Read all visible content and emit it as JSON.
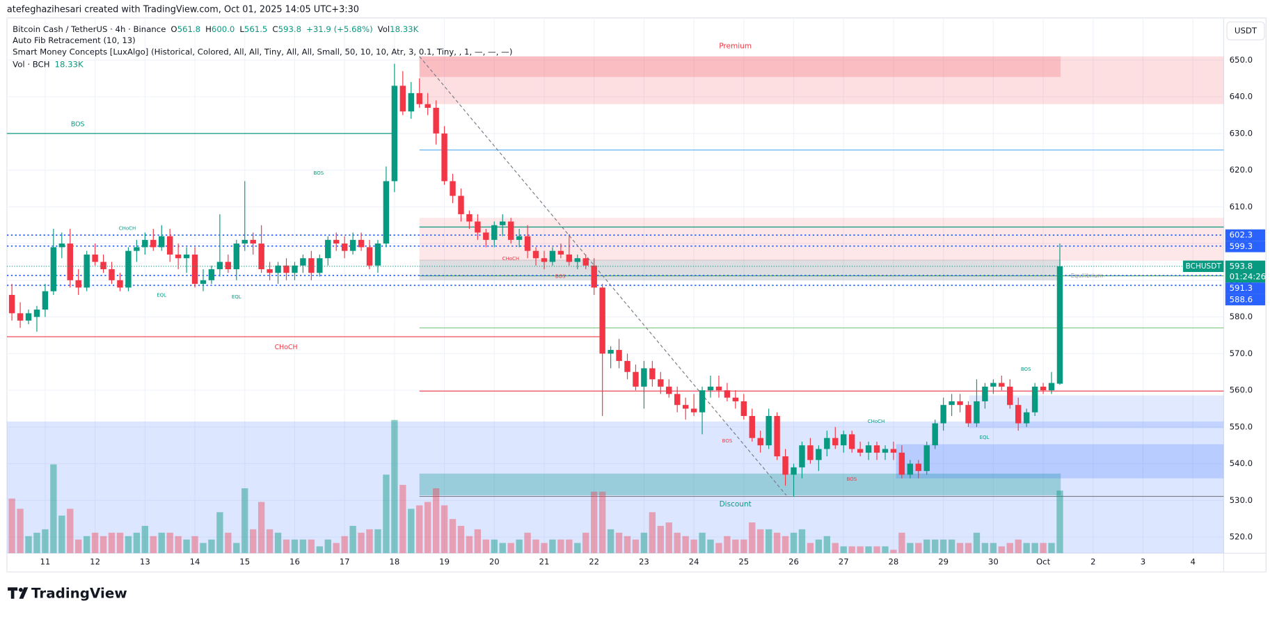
{
  "header": {
    "credit": "atefeghazihesari created with TradingView.com, Oct 01, 2025 14:05 UTC+3:30",
    "symbol": "Bitcoin Cash / TetherUS · 4h · Binance",
    "ohlc": [
      {
        "k": "O",
        "v": "561.8"
      },
      {
        "k": "H",
        "v": "600.0"
      },
      {
        "k": "L",
        "v": "561.5"
      },
      {
        "k": "C",
        "v": "593.8"
      }
    ],
    "change": "+31.9 (+5.68%)",
    "vol_key": "Vol",
    "vol_value": "18.33K",
    "indicators": [
      "Auto Fib Retracement (10, 13)",
      "Smart Money Concepts [LuxAlgo] (Historical, Colored, All, All, Tiny, All, All, Small, 50, 10, 10, Atr, 3, 0.1, Tiny, , 1, —, —, —)"
    ],
    "volume_legend": "Vol · BCH",
    "volume_legend_value": "18.33K",
    "currency": "USDT"
  },
  "branding": "TradingView",
  "chart_data": {
    "type": "candlestick",
    "up_color": "#089981",
    "down_color": "#f23645",
    "volume_up_color": "rgba(8,153,129,0.45)",
    "volume_down_color": "rgba(242,54,69,0.4)",
    "xlim": [
      -0.6,
      145.7
    ],
    "xticks": [
      {
        "value": 4,
        "label": "11"
      },
      {
        "value": 10,
        "label": "12"
      },
      {
        "value": 16,
        "label": "13"
      },
      {
        "value": 22,
        "label": "14"
      },
      {
        "value": 28,
        "label": "15"
      },
      {
        "value": 34,
        "label": "16"
      },
      {
        "value": 40,
        "label": "17"
      },
      {
        "value": 46,
        "label": "18"
      },
      {
        "value": 52,
        "label": "19"
      },
      {
        "value": 58,
        "label": "20"
      },
      {
        "value": 64,
        "label": "21"
      },
      {
        "value": 70,
        "label": "22"
      },
      {
        "value": 76,
        "label": "23"
      },
      {
        "value": 82,
        "label": "24"
      },
      {
        "value": 88,
        "label": "25"
      },
      {
        "value": 94,
        "label": "26"
      },
      {
        "value": 100,
        "label": "27"
      },
      {
        "value": 106,
        "label": "28"
      },
      {
        "value": 112,
        "label": "29"
      },
      {
        "value": 118,
        "label": "30"
      },
      {
        "value": 124,
        "label": "Oct"
      },
      {
        "value": 130,
        "label": "2"
      },
      {
        "value": 136,
        "label": "3"
      },
      {
        "value": 142,
        "label": "4"
      }
    ],
    "ylim": [
      515.6,
      661.5
    ],
    "yticks": [
      {
        "value": 520,
        "label": "520.0"
      },
      {
        "value": 530,
        "label": "530.0"
      },
      {
        "value": 540,
        "label": "540.0"
      },
      {
        "value": 550,
        "label": "550.0"
      },
      {
        "value": 560,
        "label": "560.0"
      },
      {
        "value": 570,
        "label": "570.0"
      },
      {
        "value": 580,
        "label": "580.0"
      },
      {
        "value": 590,
        "label": "590.0"
      },
      {
        "value": 600,
        "label": "600.0"
      },
      {
        "value": 610,
        "label": "610.0"
      },
      {
        "value": 620,
        "label": "620.0"
      },
      {
        "value": 630,
        "label": "630.0"
      },
      {
        "value": 640,
        "label": "640.0"
      },
      {
        "value": 650,
        "label": "650.0"
      }
    ],
    "volume_lim": [
      0,
      70
    ],
    "open": [
      586,
      581,
      579,
      580,
      582,
      587,
      599,
      600,
      590,
      588,
      597,
      595,
      593,
      590,
      588,
      598,
      599,
      601,
      599,
      602,
      597,
      596,
      597,
      589,
      590,
      593,
      595,
      593,
      600,
      601,
      600,
      593,
      592,
      594,
      592,
      594,
      596,
      592,
      596,
      601,
      600,
      598,
      601,
      599,
      594,
      600,
      617,
      643,
      636,
      641,
      638,
      637,
      630,
      617,
      613,
      608,
      606,
      603,
      601,
      605,
      606,
      601,
      602,
      598,
      596,
      595,
      598,
      597,
      595,
      596,
      594,
      588,
      570,
      571,
      568,
      565,
      561,
      566,
      563,
      561,
      559,
      556,
      555,
      554,
      560,
      561,
      560,
      558,
      557,
      553,
      547,
      545,
      553,
      542,
      537,
      539,
      545,
      541,
      544,
      547,
      545,
      548,
      544,
      543,
      545,
      543,
      544,
      543,
      537,
      540,
      538,
      545,
      551,
      556,
      557,
      556,
      551,
      557,
      561,
      562,
      561,
      556,
      551,
      554,
      561,
      560,
      561.8
    ],
    "high": [
      589,
      584,
      582,
      583,
      589,
      604,
      603,
      604,
      593,
      598,
      600,
      597,
      595,
      592,
      599,
      601,
      603,
      604,
      605,
      604,
      600,
      599,
      599,
      593,
      594,
      608,
      597,
      601,
      617,
      603,
      605,
      595,
      595,
      596,
      595,
      597,
      598,
      597,
      602,
      603,
      602,
      603,
      603,
      601,
      601,
      621,
      649,
      647,
      644,
      645,
      641,
      639,
      632,
      619,
      615,
      609,
      608,
      604,
      606,
      608,
      607,
      604,
      605,
      599,
      598,
      599,
      600,
      602,
      597,
      597,
      596,
      589,
      572,
      574,
      570,
      567,
      568,
      568,
      565,
      563,
      561,
      558,
      559,
      561,
      564,
      564,
      562,
      560,
      559,
      555,
      549,
      555,
      554,
      544,
      540,
      546,
      547,
      545,
      549,
      550,
      549,
      549,
      546,
      546,
      546,
      545,
      546,
      545,
      541,
      541,
      546,
      552,
      558,
      559,
      559,
      557,
      563,
      562,
      563,
      564,
      563,
      558,
      555,
      562,
      562,
      565,
      600
    ],
    "low": [
      579,
      577,
      578,
      576,
      580,
      586,
      596,
      588,
      586,
      587,
      594,
      592,
      589,
      587,
      587,
      595,
      597,
      598,
      598,
      595,
      593,
      592,
      588,
      587,
      589,
      591,
      592,
      590,
      598,
      597,
      592,
      590,
      589,
      590,
      590,
      592,
      590,
      591,
      594,
      598,
      596,
      597,
      598,
      593,
      592,
      599,
      614,
      635,
      634,
      637,
      635,
      627,
      616,
      611,
      606,
      604,
      601,
      599,
      599,
      602,
      600,
      599,
      596,
      594,
      593,
      594,
      596,
      594,
      593,
      593,
      586,
      553,
      566,
      566,
      563,
      560,
      555,
      561,
      559,
      558,
      554,
      552,
      553,
      548,
      558,
      558,
      557,
      555,
      552,
      546,
      543,
      544,
      541,
      534,
      531,
      536,
      540,
      538,
      542,
      544,
      543,
      543,
      542,
      541,
      541,
      541,
      541,
      536,
      536,
      536,
      537,
      544,
      549,
      553,
      554,
      550,
      550,
      555,
      559,
      560,
      555,
      549,
      550,
      553,
      559,
      559,
      561.5
    ],
    "close": [
      581,
      579,
      581,
      582,
      587,
      599,
      600,
      590,
      588,
      597,
      595,
      593,
      590,
      588,
      598,
      599,
      601,
      599,
      602,
      597,
      596,
      597,
      589,
      590,
      593,
      595,
      593,
      600,
      601,
      600,
      593,
      592,
      594,
      592,
      594,
      596,
      592,
      596,
      601,
      600,
      598,
      601,
      599,
      594,
      600,
      617,
      643,
      636,
      641,
      638,
      637,
      630,
      617,
      613,
      608,
      606,
      603,
      601,
      605,
      606,
      601,
      602,
      598,
      596,
      595,
      598,
      597,
      595,
      596,
      594,
      588,
      570,
      571,
      568,
      565,
      561,
      566,
      563,
      561,
      559,
      556,
      555,
      554,
      560,
      561,
      560,
      558,
      557,
      553,
      547,
      545,
      553,
      542,
      537,
      539,
      545,
      541,
      544,
      547,
      545,
      548,
      544,
      543,
      545,
      543,
      544,
      543,
      537,
      540,
      538,
      545,
      551,
      556,
      557,
      556,
      551,
      557,
      561,
      562,
      561,
      556,
      551,
      554,
      561,
      560,
      562,
      593.8
    ],
    "volume": [
      16,
      13,
      5,
      6,
      7,
      26,
      11,
      13,
      4,
      5,
      6,
      5,
      6,
      6,
      5,
      6,
      8,
      5,
      6,
      6,
      5,
      4,
      5,
      3,
      4,
      12,
      6,
      3,
      19,
      7,
      15,
      7,
      6,
      4,
      4,
      4,
      4,
      2,
      4,
      3,
      5,
      8,
      6,
      7,
      7,
      23,
      39,
      20,
      13,
      14,
      15,
      19,
      14,
      10,
      8,
      5,
      7,
      4,
      4,
      3,
      3,
      4,
      6,
      4,
      3,
      4,
      4,
      4,
      3,
      6,
      18,
      18,
      7,
      6,
      5,
      4,
      6,
      12,
      8,
      9,
      6,
      5,
      4,
      6,
      4,
      3,
      5,
      4,
      4,
      9,
      7,
      7,
      6,
      5,
      6,
      7,
      3,
      4,
      5,
      3,
      2,
      2,
      2,
      2,
      2,
      2,
      1,
      6,
      3,
      3,
      4,
      4,
      4,
      4,
      3,
      3,
      6,
      3,
      3,
      2,
      3,
      4,
      3,
      3,
      3,
      3,
      18.33
    ],
    "zones": [
      {
        "from": 49,
        "to": 145.7,
        "top": 651,
        "bottom": 638,
        "color": "rgba(242,54,69,0.16)"
      },
      {
        "from": 49,
        "to": 126.1,
        "top": 651,
        "bottom": 645.4,
        "color": "rgba(242,54,69,0.2)"
      },
      {
        "from": 49,
        "to": 145.7,
        "top": 607,
        "bottom": 595.3,
        "color": "rgba(242,54,69,0.12)"
      },
      {
        "from": 49,
        "to": 126.1,
        "top": 595.6,
        "bottom": 590,
        "color": "rgba(120,123,134,0.25)"
      },
      {
        "from": -0.6,
        "to": 145.7,
        "top": 551.5,
        "bottom": 515.6,
        "color": "rgba(41,98,255,0.16)"
      },
      {
        "from": 49,
        "to": 126.1,
        "top": 537.3,
        "bottom": 531.4,
        "color": "rgba(0,150,136,0.3)"
      },
      {
        "from": 106.3,
        "to": 145.7,
        "top": 545.3,
        "bottom": 536,
        "color": "rgba(41,98,255,0.2)"
      },
      {
        "from": 115.1,
        "to": 145.7,
        "top": 558.6,
        "bottom": 549.7,
        "color": "rgba(41,98,255,0.14)"
      }
    ],
    "levels": [
      {
        "price": 630,
        "from": -0.6,
        "to": 45.9,
        "color": "#089981"
      },
      {
        "price": 574.6,
        "from": -0.6,
        "to": 70.7,
        "color": "#f23645"
      },
      {
        "price": 625.5,
        "from": 49,
        "to": 145.7,
        "color": "#64b5f6"
      },
      {
        "price": 604.5,
        "from": 49,
        "to": 145.7,
        "color": "#089981"
      },
      {
        "price": 591.2,
        "from": 49,
        "to": 145.7,
        "color": "#4caf50"
      },
      {
        "price": 577,
        "from": 49,
        "to": 145.7,
        "color": "#81c784"
      },
      {
        "price": 559.8,
        "from": 49,
        "to": 145.7,
        "color": "#f23645"
      },
      {
        "price": 531.1,
        "from": 49,
        "to": 145.7,
        "color": "#787b86"
      }
    ],
    "dotted_levels": [
      602.3,
      599.3,
      591.3,
      588.6
    ],
    "trend": {
      "from": [
        49,
        651
      ],
      "to": [
        93.1,
        531.4
      ]
    },
    "current": {
      "label": "BCHUSDT",
      "price": 593.8,
      "countdown": "01:24:26"
    },
    "annotations": [
      "Premium",
      "Discount",
      "BOS",
      "CHoCH",
      "BOS",
      "CHoCH",
      "EQL",
      "EQL",
      "CHoCH",
      "BOS",
      "BOS",
      "BOS",
      "CHoCH",
      "EQL",
      "BOS",
      "Equilibrium"
    ]
  }
}
